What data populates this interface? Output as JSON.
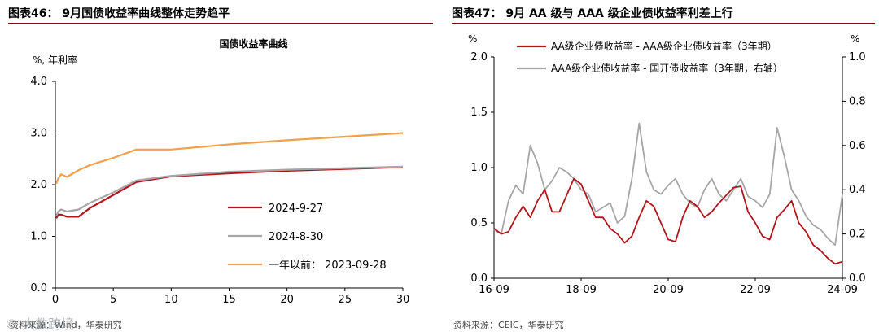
{
  "left": {
    "figure_title": "图表46：  9月国债收益率曲线整体走势趋平",
    "source": "资料来源：Wind，华泰研究",
    "watermark": "© 大数跨境",
    "colors": {
      "rule": "#7a0d1a"
    }
  },
  "right": {
    "figure_title": "图表47：  9月 AA 级与 AAA 级企业债收益率利差上行",
    "source": "资料来源：CEIC，华泰研究",
    "colors": {
      "rule": "#7a0d1a"
    }
  },
  "chart_data": [
    {
      "type": "line",
      "title": "国债收益率曲线",
      "ylabel": "%, 年利率",
      "xlabel": "",
      "xlim": [
        0,
        30
      ],
      "ylim": [
        0,
        4
      ],
      "xticks": [
        "0",
        "5",
        "10",
        "15",
        "20",
        "25",
        "30"
      ],
      "yticks": [
        "0.0",
        "1.0",
        "2.0",
        "3.0",
        "4.0"
      ],
      "grid": false,
      "legend_position": "bottom-right",
      "series": [
        {
          "name": "2024-9-27",
          "color": "#b0151c",
          "x": [
            0.08,
            0.25,
            0.5,
            1,
            2,
            3,
            5,
            7,
            10,
            15,
            20,
            30
          ],
          "y": [
            1.35,
            1.42,
            1.42,
            1.38,
            1.38,
            1.55,
            1.8,
            2.05,
            2.16,
            2.22,
            2.27,
            2.34
          ]
        },
        {
          "name": "2024-8-30",
          "color": "#a6a6a6",
          "x": [
            0.08,
            0.25,
            0.5,
            1,
            2,
            3,
            5,
            7,
            10,
            15,
            20,
            30
          ],
          "y": [
            1.4,
            1.48,
            1.52,
            1.48,
            1.52,
            1.65,
            1.85,
            2.08,
            2.17,
            2.25,
            2.29,
            2.35
          ]
        },
        {
          "name": "一年以前：  2023-09-28",
          "color": "#f0a04b",
          "x": [
            0.08,
            0.25,
            0.5,
            1,
            2,
            3,
            5,
            7,
            10,
            15,
            20,
            30
          ],
          "y": [
            2.02,
            2.12,
            2.2,
            2.15,
            2.28,
            2.38,
            2.52,
            2.68,
            2.68,
            2.78,
            2.86,
            3.0
          ]
        }
      ]
    },
    {
      "type": "line",
      "title": "",
      "ylabel": "%",
      "ylabel_right": "%",
      "xlabel": "",
      "xticks": [
        "16-09",
        "18-09",
        "20-09",
        "22-09",
        "24-09"
      ],
      "ylim": [
        0,
        2
      ],
      "ylim_right": [
        0,
        1
      ],
      "yticks": [
        "0.0",
        "0.5",
        "1.0",
        "1.5",
        "2.0"
      ],
      "yticks_right": [
        "0.0",
        "0.2",
        "0.4",
        "0.6",
        "0.8",
        "1.0"
      ],
      "grid": false,
      "legend_position": "top-right",
      "series": [
        {
          "name": "AA级企业债收益率 - AAA级企业债收益率（3年期）",
          "color": "#b0151c",
          "axis": "left",
          "x": [
            0,
            2,
            4,
            6,
            8,
            10,
            12,
            14,
            16,
            18,
            20,
            22,
            24,
            26,
            28,
            30,
            32,
            34,
            36,
            38,
            40,
            42,
            44,
            46,
            48,
            50,
            52,
            54,
            56,
            58,
            60,
            62,
            64,
            66,
            68,
            70,
            72,
            74,
            76,
            78,
            80,
            82,
            84,
            86,
            88,
            90,
            92,
            94,
            96
          ],
          "y": [
            0.45,
            0.4,
            0.42,
            0.55,
            0.65,
            0.55,
            0.7,
            0.8,
            0.6,
            0.6,
            0.75,
            0.9,
            0.85,
            0.7,
            0.55,
            0.55,
            0.45,
            0.4,
            0.32,
            0.38,
            0.55,
            0.7,
            0.65,
            0.5,
            0.35,
            0.33,
            0.55,
            0.7,
            0.65,
            0.55,
            0.6,
            0.68,
            0.75,
            0.82,
            0.83,
            0.6,
            0.5,
            0.38,
            0.35,
            0.55,
            0.62,
            0.7,
            0.5,
            0.42,
            0.3,
            0.25,
            0.18,
            0.13,
            0.15
          ]
        },
        {
          "name": "AAA级企业债收益率 - 国开债收益率（3年期，右轴）",
          "color": "#a6a6a6",
          "axis": "right",
          "x": [
            0,
            2,
            4,
            6,
            8,
            10,
            12,
            14,
            16,
            18,
            20,
            22,
            24,
            26,
            28,
            30,
            32,
            34,
            36,
            38,
            40,
            42,
            44,
            46,
            48,
            50,
            52,
            54,
            56,
            58,
            60,
            62,
            64,
            66,
            68,
            70,
            72,
            74,
            76,
            78,
            80,
            82,
            84,
            86,
            88,
            90,
            92,
            94,
            96
          ],
          "y": [
            0.22,
            0.2,
            0.35,
            0.42,
            0.38,
            0.6,
            0.52,
            0.4,
            0.44,
            0.5,
            0.48,
            0.45,
            0.4,
            0.38,
            0.3,
            0.32,
            0.34,
            0.25,
            0.28,
            0.45,
            0.7,
            0.48,
            0.4,
            0.38,
            0.42,
            0.45,
            0.38,
            0.34,
            0.32,
            0.4,
            0.45,
            0.38,
            0.35,
            0.4,
            0.45,
            0.37,
            0.35,
            0.32,
            0.38,
            0.68,
            0.55,
            0.4,
            0.35,
            0.28,
            0.24,
            0.22,
            0.18,
            0.15,
            0.38
          ]
        }
      ]
    }
  ]
}
